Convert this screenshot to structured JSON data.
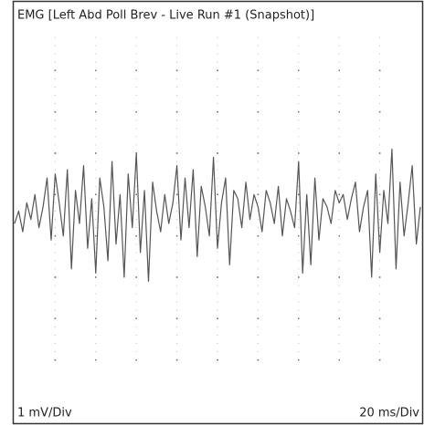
{
  "chart_data": {
    "type": "line",
    "title": "EMG [Left Abd Poll Brev - Live Run #1 (Snapshot)]",
    "y_scale_label": "1 mV/Div",
    "x_scale_label": "20 ms/Div",
    "color": "#555555",
    "xlim": [
      0,
      200
    ],
    "ylim": [
      -4.5,
      4.5
    ],
    "x": [
      0,
      2,
      4,
      6,
      8,
      10,
      12,
      14,
      16,
      18,
      20,
      22,
      24,
      26,
      28,
      30,
      32,
      34,
      36,
      38,
      40,
      42,
      44,
      46,
      48,
      50,
      52,
      54,
      56,
      58,
      60,
      62,
      64,
      66,
      68,
      70,
      72,
      74,
      76,
      78,
      80,
      82,
      84,
      86,
      88,
      90,
      92,
      94,
      96,
      98,
      100,
      102,
      104,
      106,
      108,
      110,
      112,
      114,
      116,
      118,
      120,
      122,
      124,
      126,
      128,
      130,
      132,
      134,
      136,
      138,
      140,
      142,
      144,
      146,
      148,
      150,
      152,
      154,
      156,
      158,
      160,
      162,
      164,
      166,
      168,
      170,
      172,
      174,
      176,
      178,
      180,
      182,
      184,
      186,
      188,
      190,
      192,
      194,
      196,
      198,
      200
    ],
    "values": [
      -0.2,
      0.1,
      -0.4,
      0.3,
      -0.1,
      0.5,
      -0.3,
      0.2,
      0.9,
      -0.6,
      1.0,
      0.3,
      -0.5,
      1.1,
      -1.3,
      0.6,
      -0.2,
      1.2,
      -0.8,
      0.4,
      -1.4,
      0.9,
      0.2,
      -1.1,
      1.3,
      -0.7,
      0.5,
      -1.5,
      1.0,
      -0.3,
      1.5,
      -0.9,
      0.6,
      -1.6,
      0.8,
      0.1,
      -0.4,
      0.5,
      -0.2,
      0.3,
      1.2,
      -0.6,
      0.9,
      -0.3,
      1.1,
      -1.0,
      0.7,
      0.2,
      -0.5,
      1.4,
      -0.8,
      0.3,
      0.9,
      -1.2,
      0.6,
      0.4,
      -0.3,
      0.8,
      -0.1,
      0.5,
      0.2,
      -0.4,
      0.6,
      0.3,
      -0.2,
      0.7,
      -0.5,
      0.4,
      0.1,
      -0.3,
      1.3,
      -1.4,
      0.5,
      -1.2,
      0.9,
      -0.6,
      0.4,
      0.2,
      -0.2,
      0.6,
      0.3,
      0.5,
      -0.1,
      0.4,
      0.8,
      -0.4,
      0.2,
      0.6,
      -1.5,
      1.0,
      -0.9,
      0.6,
      -0.2,
      1.6,
      -1.3,
      0.8,
      -0.5,
      0.3,
      1.2,
      -0.7,
      0.2
    ],
    "grid": true
  }
}
